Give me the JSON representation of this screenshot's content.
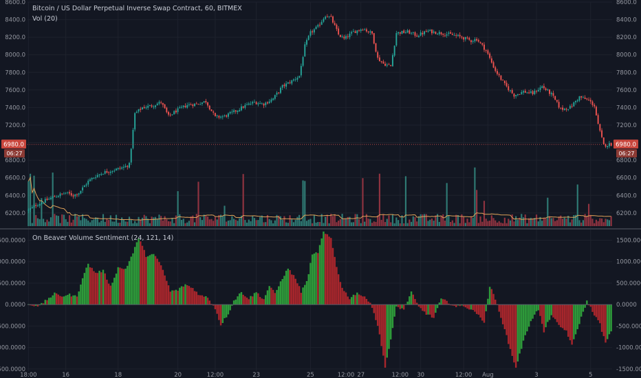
{
  "colors": {
    "background": "#131722",
    "up": "#26a69a",
    "down": "#ef5350",
    "hist_up": "#2e9b3a",
    "hist_down": "#a8262c",
    "vol_up": "#2f7a74",
    "vol_down": "#8f3340",
    "vol_ma": "#e0a35a",
    "price_line": "#ef5350",
    "grid": "#1e222d",
    "axis_text": "#9598a1",
    "label_bg": "#c9463d"
  },
  "header": {
    "title": "Bitcoin / US Dollar Perpetual Inverse Swap Contract, 60, BITMEX",
    "vol_label": "Vol (20)",
    "indicator_label": "On Beaver Volume Sentiment (24, 121, 14)"
  },
  "price_tag": {
    "value": "6980.0",
    "countdown": "06:27"
  },
  "chart_data": [
    {
      "type": "candlestick",
      "title": "Bitcoin / US Dollar Perpetual Inverse Swap Contract, 60, BITMEX",
      "ylim": [
        6050,
        8600
      ],
      "y_ticks": [
        "8600.0",
        "8400.0",
        "8200.0",
        "8000.0",
        "7800.0",
        "7600.0",
        "7400.0",
        "7200.0",
        "7000.0",
        "6800.0",
        "6600.0",
        "6400.0",
        "6200.0"
      ],
      "close_path": [
        {
          "x": 0,
          "close": 6230
        },
        {
          "x": 4,
          "close": 6290
        },
        {
          "x": 8,
          "close": 6330
        },
        {
          "x": 12,
          "close": 6370
        },
        {
          "x": 16,
          "close": 6400
        },
        {
          "x": 20,
          "close": 6430
        },
        {
          "x": 24,
          "close": 6400
        },
        {
          "x": 27,
          "close": 6430
        },
        {
          "x": 32,
          "close": 6560
        },
        {
          "x": 36,
          "close": 6620
        },
        {
          "x": 40,
          "close": 6660
        },
        {
          "x": 46,
          "close": 6690
        },
        {
          "x": 51,
          "close": 6720
        },
        {
          "x": 54,
          "close": 6750
        },
        {
          "x": 57,
          "close": 7330
        },
        {
          "x": 61,
          "close": 7400
        },
        {
          "x": 66,
          "close": 7420
        },
        {
          "x": 71,
          "close": 7460
        },
        {
          "x": 75,
          "close": 7300
        },
        {
          "x": 79,
          "close": 7360
        },
        {
          "x": 85,
          "close": 7430
        },
        {
          "x": 90,
          "close": 7440
        },
        {
          "x": 95,
          "close": 7470
        },
        {
          "x": 100,
          "close": 7290
        },
        {
          "x": 105,
          "close": 7300
        },
        {
          "x": 110,
          "close": 7350
        },
        {
          "x": 116,
          "close": 7420
        },
        {
          "x": 121,
          "close": 7460
        },
        {
          "x": 126,
          "close": 7440
        },
        {
          "x": 131,
          "close": 7500
        },
        {
          "x": 136,
          "close": 7640
        },
        {
          "x": 141,
          "close": 7700
        },
        {
          "x": 145,
          "close": 7760
        },
        {
          "x": 148,
          "close": 8100
        },
        {
          "x": 151,
          "close": 8250
        },
        {
          "x": 155,
          "close": 8320
        },
        {
          "x": 159,
          "close": 8450
        },
        {
          "x": 162,
          "close": 8420
        },
        {
          "x": 166,
          "close": 8230
        },
        {
          "x": 169,
          "close": 8180
        },
        {
          "x": 174,
          "close": 8260
        },
        {
          "x": 179,
          "close": 8300
        },
        {
          "x": 184,
          "close": 8240
        },
        {
          "x": 187,
          "close": 7960
        },
        {
          "x": 190,
          "close": 7900
        },
        {
          "x": 194,
          "close": 7870
        },
        {
          "x": 197,
          "close": 8250
        },
        {
          "x": 203,
          "close": 8260
        },
        {
          "x": 208,
          "close": 8220
        },
        {
          "x": 214,
          "close": 8270
        },
        {
          "x": 220,
          "close": 8250
        },
        {
          "x": 226,
          "close": 8230
        },
        {
          "x": 232,
          "close": 8200
        },
        {
          "x": 237,
          "close": 8160
        },
        {
          "x": 240,
          "close": 8180
        },
        {
          "x": 245,
          "close": 8050
        },
        {
          "x": 250,
          "close": 7820
        },
        {
          "x": 255,
          "close": 7660
        },
        {
          "x": 260,
          "close": 7540
        },
        {
          "x": 265,
          "close": 7580
        },
        {
          "x": 270,
          "close": 7560
        },
        {
          "x": 275,
          "close": 7640
        },
        {
          "x": 280,
          "close": 7550
        },
        {
          "x": 285,
          "close": 7380
        },
        {
          "x": 290,
          "close": 7400
        },
        {
          "x": 295,
          "close": 7520
        },
        {
          "x": 300,
          "close": 7480
        },
        {
          "x": 303,
          "close": 7420
        },
        {
          "x": 305,
          "close": 7200
        },
        {
          "x": 308,
          "close": 6970
        },
        {
          "x": 311,
          "close": 6980
        }
      ],
      "last_price": 6980.0
    },
    {
      "type": "bar",
      "title": "Vol (20)",
      "series": [
        {
          "name": "Vol (20)"
        }
      ]
    },
    {
      "type": "bar",
      "title": "On Beaver Volume Sentiment (24, 121, 14)",
      "ylim": [
        -1550,
        1700
      ],
      "y_ticks": [
        "1500.0000",
        "1000.0000",
        "500.0000",
        "0.0000",
        "-500.0000",
        "-1000.0000",
        "-1500.0000"
      ],
      "path": [
        {
          "x": 0,
          "y": 0
        },
        {
          "x": 6,
          "y": -30
        },
        {
          "x": 10,
          "y": 120
        },
        {
          "x": 14,
          "y": 250
        },
        {
          "x": 18,
          "y": 200
        },
        {
          "x": 22,
          "y": 230
        },
        {
          "x": 26,
          "y": 180
        },
        {
          "x": 29,
          "y": 640
        },
        {
          "x": 32,
          "y": 940
        },
        {
          "x": 36,
          "y": 740
        },
        {
          "x": 40,
          "y": 790
        },
        {
          "x": 44,
          "y": 420
        },
        {
          "x": 48,
          "y": 860
        },
        {
          "x": 52,
          "y": 830
        },
        {
          "x": 56,
          "y": 1200
        },
        {
          "x": 59,
          "y": 1560
        },
        {
          "x": 63,
          "y": 1140
        },
        {
          "x": 67,
          "y": 1170
        },
        {
          "x": 71,
          "y": 920
        },
        {
          "x": 76,
          "y": 310
        },
        {
          "x": 80,
          "y": 340
        },
        {
          "x": 84,
          "y": 470
        },
        {
          "x": 88,
          "y": 380
        },
        {
          "x": 92,
          "y": 210
        },
        {
          "x": 96,
          "y": 170
        },
        {
          "x": 100,
          "y": -90
        },
        {
          "x": 103,
          "y": -470
        },
        {
          "x": 107,
          "y": -210
        },
        {
          "x": 110,
          "y": 90
        },
        {
          "x": 114,
          "y": 290
        },
        {
          "x": 118,
          "y": 140
        },
        {
          "x": 122,
          "y": 290
        },
        {
          "x": 126,
          "y": 120
        },
        {
          "x": 129,
          "y": 440
        },
        {
          "x": 132,
          "y": 250
        },
        {
          "x": 136,
          "y": 620
        },
        {
          "x": 139,
          "y": 840
        },
        {
          "x": 143,
          "y": 610
        },
        {
          "x": 146,
          "y": 300
        },
        {
          "x": 149,
          "y": 530
        },
        {
          "x": 152,
          "y": 1150
        },
        {
          "x": 155,
          "y": 1220
        },
        {
          "x": 158,
          "y": 1680
        },
        {
          "x": 162,
          "y": 1540
        },
        {
          "x": 165,
          "y": 890
        },
        {
          "x": 168,
          "y": 380
        },
        {
          "x": 172,
          "y": 150
        },
        {
          "x": 176,
          "y": 280
        },
        {
          "x": 180,
          "y": 160
        },
        {
          "x": 183,
          "y": 70
        },
        {
          "x": 187,
          "y": -480
        },
        {
          "x": 191,
          "y": -1440
        },
        {
          "x": 194,
          "y": -820
        },
        {
          "x": 197,
          "y": -50
        },
        {
          "x": 201,
          "y": -110
        },
        {
          "x": 205,
          "y": 290
        },
        {
          "x": 209,
          "y": -60
        },
        {
          "x": 213,
          "y": -210
        },
        {
          "x": 217,
          "y": -310
        },
        {
          "x": 221,
          "y": 130
        },
        {
          "x": 225,
          "y": 50
        },
        {
          "x": 229,
          "y": -60
        },
        {
          "x": 233,
          "y": -20
        },
        {
          "x": 237,
          "y": -130
        },
        {
          "x": 241,
          "y": -210
        },
        {
          "x": 244,
          "y": -450
        },
        {
          "x": 247,
          "y": 440
        },
        {
          "x": 250,
          "y": 120
        },
        {
          "x": 253,
          "y": -280
        },
        {
          "x": 256,
          "y": -740
        },
        {
          "x": 259,
          "y": -1200
        },
        {
          "x": 261,
          "y": -1460
        },
        {
          "x": 265,
          "y": -860
        },
        {
          "x": 269,
          "y": -370
        },
        {
          "x": 273,
          "y": -110
        },
        {
          "x": 276,
          "y": -640
        },
        {
          "x": 280,
          "y": -230
        },
        {
          "x": 284,
          "y": -500
        },
        {
          "x": 288,
          "y": -610
        },
        {
          "x": 291,
          "y": -960
        },
        {
          "x": 295,
          "y": -430
        },
        {
          "x": 299,
          "y": 80
        },
        {
          "x": 302,
          "y": -150
        },
        {
          "x": 306,
          "y": -460
        },
        {
          "x": 309,
          "y": -900
        },
        {
          "x": 312,
          "y": -620
        }
      ]
    }
  ],
  "x_axis": {
    "labels": [
      {
        "bar": 0,
        "text": "18:00"
      },
      {
        "bar": 20,
        "text": "16"
      },
      {
        "bar": 48,
        "text": "18"
      },
      {
        "bar": 80,
        "text": "20"
      },
      {
        "bar": 100,
        "text": "12:00"
      },
      {
        "bar": 122,
        "text": "23"
      },
      {
        "bar": 151,
        "text": "25"
      },
      {
        "bar": 170,
        "text": "12:00"
      },
      {
        "bar": 178,
        "text": "27"
      },
      {
        "bar": 199,
        "text": "12:00"
      },
      {
        "bar": 210,
        "text": "30"
      },
      {
        "bar": 233,
        "text": "12:00"
      },
      {
        "bar": 246,
        "text": "Aug"
      },
      {
        "bar": 272,
        "text": "3"
      },
      {
        "bar": 301,
        "text": "5"
      }
    ]
  }
}
